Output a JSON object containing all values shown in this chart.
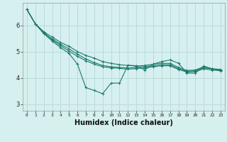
{
  "xlabel": "Humidex (Indice chaleur)",
  "bg_color": "#d6efef",
  "grid_color": "#b8d8d8",
  "line_color": "#1a7a6a",
  "xlim": [
    -0.5,
    23.5
  ],
  "ylim": [
    2.75,
    6.85
  ],
  "xticks": [
    0,
    1,
    2,
    3,
    4,
    5,
    6,
    7,
    8,
    9,
    10,
    11,
    12,
    13,
    14,
    15,
    16,
    17,
    18,
    19,
    20,
    21,
    22,
    23
  ],
  "yticks": [
    3,
    4,
    5,
    6
  ],
  "series": [
    [
      6.6,
      6.05,
      5.75,
      5.55,
      5.35,
      5.2,
      5.0,
      4.85,
      4.75,
      4.62,
      4.55,
      4.5,
      4.47,
      4.45,
      4.47,
      4.52,
      4.55,
      4.55,
      4.4,
      4.28,
      4.3,
      4.42,
      4.35,
      4.32
    ],
    [
      6.6,
      6.05,
      5.72,
      5.45,
      5.22,
      5.02,
      4.82,
      4.65,
      4.52,
      4.42,
      4.38,
      4.36,
      4.33,
      4.35,
      4.38,
      4.42,
      4.46,
      4.46,
      4.32,
      4.22,
      4.24,
      4.34,
      4.3,
      4.27
    ],
    [
      6.6,
      6.05,
      5.68,
      5.4,
      5.15,
      4.93,
      4.52,
      3.63,
      3.52,
      3.4,
      3.8,
      3.8,
      4.48,
      4.46,
      4.3,
      4.52,
      4.62,
      4.68,
      4.56,
      4.18,
      4.18,
      4.45,
      4.34,
      4.28
    ],
    [
      6.6,
      6.05,
      5.7,
      5.48,
      5.28,
      5.1,
      4.9,
      4.72,
      4.58,
      4.47,
      4.42,
      4.4,
      4.37,
      4.4,
      4.43,
      4.46,
      4.5,
      4.5,
      4.35,
      4.25,
      4.27,
      4.38,
      4.34,
      4.3
    ]
  ],
  "marker": "+",
  "markersize": 3,
  "linewidth": 0.8
}
